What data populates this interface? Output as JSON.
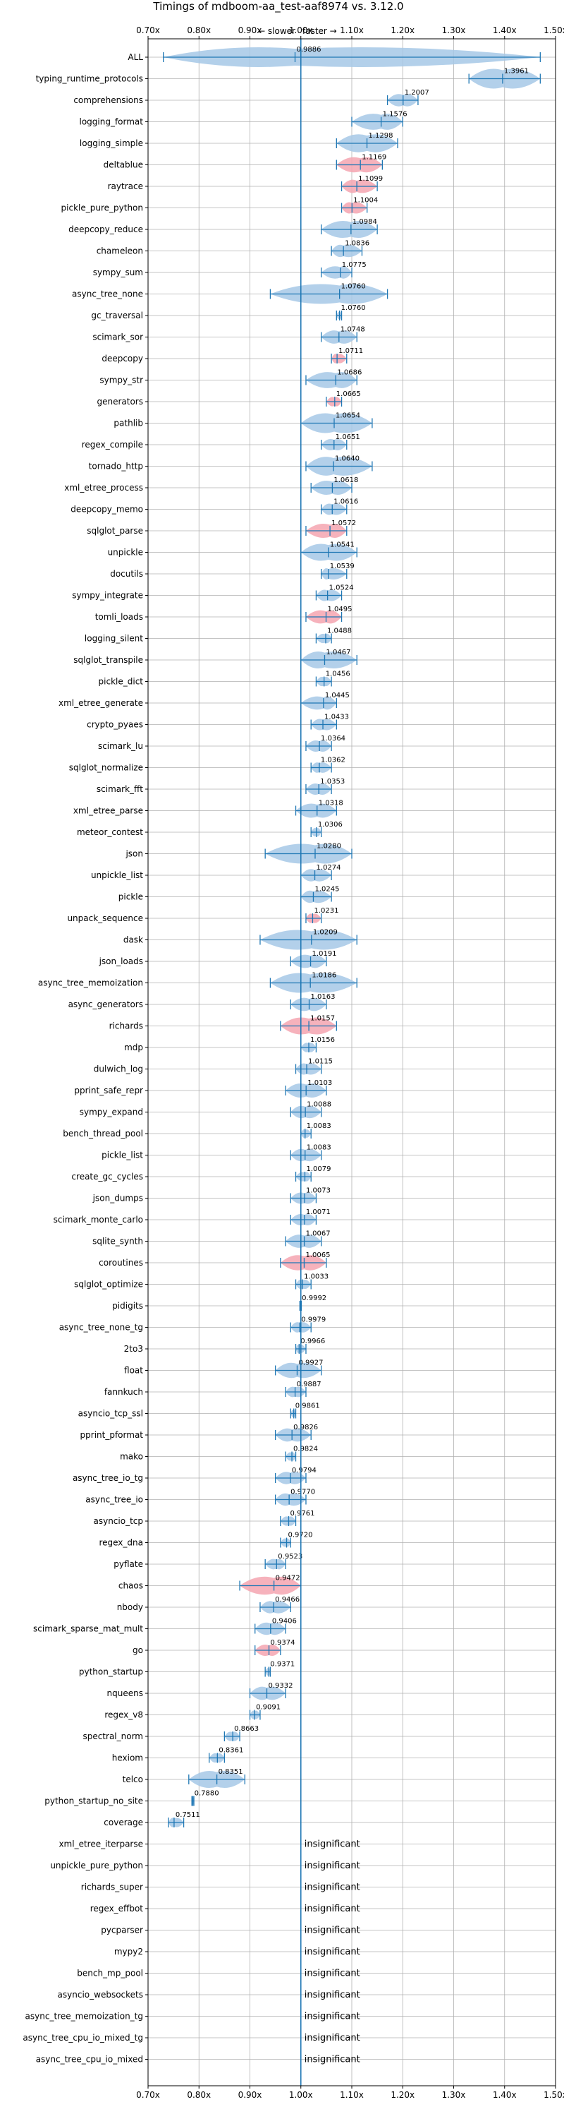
{
  "chart_data": {
    "type": "violin",
    "title": "Timings of mdboom-aa_test-aaf8974 vs. 3.12.0",
    "direction_labels": {
      "slower": "← slower",
      "faster": "faster →"
    },
    "xlim": [
      0.7,
      1.5
    ],
    "x_ticks": [
      0.7,
      0.8,
      0.9,
      1.0,
      1.1,
      1.2,
      1.3,
      1.4,
      1.5
    ],
    "x_tick_labels": [
      "0.70x",
      "0.80x",
      "0.90x",
      "1.00x",
      "1.10x",
      "1.20x",
      "1.30x",
      "1.40x",
      "1.50x"
    ],
    "reference_line": 1.0,
    "grid": true,
    "colors": {
      "normal": "#a6c8e6",
      "highlight": "#f4a5b0",
      "line": "#1f77b4"
    },
    "insignificant_text": "insignificant",
    "benchmarks": [
      {
        "name": "ALL",
        "value": 0.9886,
        "label": "0.9886",
        "min": 0.73,
        "max": 1.47,
        "status": "normal"
      },
      {
        "name": "typing_runtime_protocols",
        "value": 1.3961,
        "label": "1.3961",
        "min": 1.33,
        "max": 1.47,
        "status": "normal"
      },
      {
        "name": "comprehensions",
        "value": 1.2007,
        "label": "1.2007",
        "min": 1.17,
        "max": 1.23,
        "status": "normal"
      },
      {
        "name": "logging_format",
        "value": 1.1576,
        "label": "1.1576",
        "min": 1.1,
        "max": 1.2,
        "status": "normal"
      },
      {
        "name": "logging_simple",
        "value": 1.1298,
        "label": "1.1298",
        "min": 1.07,
        "max": 1.19,
        "status": "normal"
      },
      {
        "name": "deltablue",
        "value": 1.1169,
        "label": "1.1169",
        "min": 1.07,
        "max": 1.16,
        "status": "highlight"
      },
      {
        "name": "raytrace",
        "value": 1.1099,
        "label": "1.1099",
        "min": 1.08,
        "max": 1.15,
        "status": "highlight"
      },
      {
        "name": "pickle_pure_python",
        "value": 1.1004,
        "label": "1.1004",
        "min": 1.08,
        "max": 1.13,
        "status": "highlight"
      },
      {
        "name": "deepcopy_reduce",
        "value": 1.0984,
        "label": "1.0984",
        "min": 1.04,
        "max": 1.15,
        "status": "normal"
      },
      {
        "name": "chameleon",
        "value": 1.0836,
        "label": "1.0836",
        "min": 1.06,
        "max": 1.12,
        "status": "normal"
      },
      {
        "name": "sympy_sum",
        "value": 1.0775,
        "label": "1.0775",
        "min": 1.04,
        "max": 1.1,
        "status": "normal"
      },
      {
        "name": "async_tree_none",
        "value": 1.076,
        "label": "1.0760",
        "min": 0.94,
        "max": 1.17,
        "status": "normal"
      },
      {
        "name": "gc_traversal",
        "value": 1.076,
        "label": "1.0760",
        "min": 1.07,
        "max": 1.08,
        "status": "normal"
      },
      {
        "name": "scimark_sor",
        "value": 1.0748,
        "label": "1.0748",
        "min": 1.04,
        "max": 1.11,
        "status": "normal"
      },
      {
        "name": "deepcopy",
        "value": 1.0711,
        "label": "1.0711",
        "min": 1.06,
        "max": 1.09,
        "status": "highlight"
      },
      {
        "name": "sympy_str",
        "value": 1.0686,
        "label": "1.0686",
        "min": 1.01,
        "max": 1.11,
        "status": "normal"
      },
      {
        "name": "generators",
        "value": 1.0665,
        "label": "1.0665",
        "min": 1.05,
        "max": 1.08,
        "status": "highlight"
      },
      {
        "name": "pathlib",
        "value": 1.0654,
        "label": "1.0654",
        "min": 1.0,
        "max": 1.14,
        "status": "normal"
      },
      {
        "name": "regex_compile",
        "value": 1.0651,
        "label": "1.0651",
        "min": 1.04,
        "max": 1.09,
        "status": "normal"
      },
      {
        "name": "tornado_http",
        "value": 1.064,
        "label": "1.0640",
        "min": 1.01,
        "max": 1.14,
        "status": "normal"
      },
      {
        "name": "xml_etree_process",
        "value": 1.0618,
        "label": "1.0618",
        "min": 1.02,
        "max": 1.1,
        "status": "normal"
      },
      {
        "name": "deepcopy_memo",
        "value": 1.0616,
        "label": "1.0616",
        "min": 1.04,
        "max": 1.09,
        "status": "normal"
      },
      {
        "name": "sqlglot_parse",
        "value": 1.0572,
        "label": "1.0572",
        "min": 1.01,
        "max": 1.09,
        "status": "highlight"
      },
      {
        "name": "unpickle",
        "value": 1.0541,
        "label": "1.0541",
        "min": 1.0,
        "max": 1.11,
        "status": "normal"
      },
      {
        "name": "docutils",
        "value": 1.0539,
        "label": "1.0539",
        "min": 1.04,
        "max": 1.09,
        "status": "normal"
      },
      {
        "name": "sympy_integrate",
        "value": 1.0524,
        "label": "1.0524",
        "min": 1.03,
        "max": 1.08,
        "status": "normal"
      },
      {
        "name": "tomli_loads",
        "value": 1.0495,
        "label": "1.0495",
        "min": 1.01,
        "max": 1.08,
        "status": "highlight"
      },
      {
        "name": "logging_silent",
        "value": 1.0488,
        "label": "1.0488",
        "min": 1.03,
        "max": 1.06,
        "status": "normal"
      },
      {
        "name": "sqlglot_transpile",
        "value": 1.0467,
        "label": "1.0467",
        "min": 1.0,
        "max": 1.11,
        "status": "normal"
      },
      {
        "name": "pickle_dict",
        "value": 1.0456,
        "label": "1.0456",
        "min": 1.03,
        "max": 1.06,
        "status": "normal"
      },
      {
        "name": "xml_etree_generate",
        "value": 1.0445,
        "label": "1.0445",
        "min": 1.0,
        "max": 1.07,
        "status": "normal"
      },
      {
        "name": "crypto_pyaes",
        "value": 1.0433,
        "label": "1.0433",
        "min": 1.02,
        "max": 1.07,
        "status": "normal"
      },
      {
        "name": "scimark_lu",
        "value": 1.0364,
        "label": "1.0364",
        "min": 1.01,
        "max": 1.06,
        "status": "normal"
      },
      {
        "name": "sqlglot_normalize",
        "value": 1.0362,
        "label": "1.0362",
        "min": 1.02,
        "max": 1.06,
        "status": "normal"
      },
      {
        "name": "scimark_fft",
        "value": 1.0353,
        "label": "1.0353",
        "min": 1.01,
        "max": 1.06,
        "status": "normal"
      },
      {
        "name": "xml_etree_parse",
        "value": 1.0318,
        "label": "1.0318",
        "min": 0.99,
        "max": 1.07,
        "status": "normal"
      },
      {
        "name": "meteor_contest",
        "value": 1.0306,
        "label": "1.0306",
        "min": 1.02,
        "max": 1.04,
        "status": "normal"
      },
      {
        "name": "json",
        "value": 1.028,
        "label": "1.0280",
        "min": 0.93,
        "max": 1.1,
        "status": "normal"
      },
      {
        "name": "unpickle_list",
        "value": 1.0274,
        "label": "1.0274",
        "min": 1.0,
        "max": 1.06,
        "status": "normal"
      },
      {
        "name": "pickle",
        "value": 1.0245,
        "label": "1.0245",
        "min": 1.0,
        "max": 1.06,
        "status": "normal"
      },
      {
        "name": "unpack_sequence",
        "value": 1.0231,
        "label": "1.0231",
        "min": 1.01,
        "max": 1.04,
        "status": "highlight"
      },
      {
        "name": "dask",
        "value": 1.0209,
        "label": "1.0209",
        "min": 0.92,
        "max": 1.11,
        "status": "normal"
      },
      {
        "name": "json_loads",
        "value": 1.0191,
        "label": "1.0191",
        "min": 0.98,
        "max": 1.05,
        "status": "normal"
      },
      {
        "name": "async_tree_memoization",
        "value": 1.0186,
        "label": "1.0186",
        "min": 0.94,
        "max": 1.11,
        "status": "normal"
      },
      {
        "name": "async_generators",
        "value": 1.0163,
        "label": "1.0163",
        "min": 0.98,
        "max": 1.05,
        "status": "normal"
      },
      {
        "name": "richards",
        "value": 1.0157,
        "label": "1.0157",
        "min": 0.96,
        "max": 1.07,
        "status": "highlight"
      },
      {
        "name": "mdp",
        "value": 1.0156,
        "label": "1.0156",
        "min": 1.0,
        "max": 1.03,
        "status": "normal"
      },
      {
        "name": "dulwich_log",
        "value": 1.0115,
        "label": "1.0115",
        "min": 0.99,
        "max": 1.04,
        "status": "normal"
      },
      {
        "name": "pprint_safe_repr",
        "value": 1.0103,
        "label": "1.0103",
        "min": 0.97,
        "max": 1.05,
        "status": "normal"
      },
      {
        "name": "sympy_expand",
        "value": 1.0088,
        "label": "1.0088",
        "min": 0.98,
        "max": 1.04,
        "status": "normal"
      },
      {
        "name": "bench_thread_pool",
        "value": 1.0083,
        "label": "1.0083",
        "min": 1.0,
        "max": 1.02,
        "status": "normal"
      },
      {
        "name": "pickle_list",
        "value": 1.0083,
        "label": "1.0083",
        "min": 0.98,
        "max": 1.04,
        "status": "normal"
      },
      {
        "name": "create_gc_cycles",
        "value": 1.0079,
        "label": "1.0079",
        "min": 0.99,
        "max": 1.02,
        "status": "normal"
      },
      {
        "name": "json_dumps",
        "value": 1.0073,
        "label": "1.0073",
        "min": 0.98,
        "max": 1.03,
        "status": "normal"
      },
      {
        "name": "scimark_monte_carlo",
        "value": 1.0071,
        "label": "1.0071",
        "min": 0.98,
        "max": 1.03,
        "status": "normal"
      },
      {
        "name": "sqlite_synth",
        "value": 1.0067,
        "label": "1.0067",
        "min": 0.97,
        "max": 1.04,
        "status": "normal"
      },
      {
        "name": "coroutines",
        "value": 1.0065,
        "label": "1.0065",
        "min": 0.96,
        "max": 1.05,
        "status": "highlight"
      },
      {
        "name": "sqlglot_optimize",
        "value": 1.0033,
        "label": "1.0033",
        "min": 0.99,
        "max": 1.02,
        "status": "normal"
      },
      {
        "name": "pidigits",
        "value": 0.9992,
        "label": "0.9992",
        "min": 0.998,
        "max": 1.001,
        "status": "normal"
      },
      {
        "name": "async_tree_none_tg",
        "value": 0.9979,
        "label": "0.9979",
        "min": 0.98,
        "max": 1.02,
        "status": "normal"
      },
      {
        "name": "2to3",
        "value": 0.9966,
        "label": "0.9966",
        "min": 0.99,
        "max": 1.01,
        "status": "normal"
      },
      {
        "name": "float",
        "value": 0.9927,
        "label": "0.9927",
        "min": 0.95,
        "max": 1.04,
        "status": "normal"
      },
      {
        "name": "fannkuch",
        "value": 0.9887,
        "label": "0.9887",
        "min": 0.97,
        "max": 1.01,
        "status": "normal"
      },
      {
        "name": "asyncio_tcp_ssl",
        "value": 0.9861,
        "label": "0.9861",
        "min": 0.98,
        "max": 0.99,
        "status": "normal"
      },
      {
        "name": "pprint_pformat",
        "value": 0.9826,
        "label": "0.9826",
        "min": 0.95,
        "max": 1.02,
        "status": "normal"
      },
      {
        "name": "mako",
        "value": 0.9824,
        "label": "0.9824",
        "min": 0.97,
        "max": 0.99,
        "status": "normal"
      },
      {
        "name": "async_tree_io_tg",
        "value": 0.9794,
        "label": "0.9794",
        "min": 0.95,
        "max": 1.01,
        "status": "normal"
      },
      {
        "name": "async_tree_io",
        "value": 0.977,
        "label": "0.9770",
        "min": 0.95,
        "max": 1.01,
        "status": "normal"
      },
      {
        "name": "asyncio_tcp",
        "value": 0.9761,
        "label": "0.9761",
        "min": 0.96,
        "max": 0.99,
        "status": "normal"
      },
      {
        "name": "regex_dna",
        "value": 0.972,
        "label": "0.9720",
        "min": 0.96,
        "max": 0.98,
        "status": "normal"
      },
      {
        "name": "pyflate",
        "value": 0.9523,
        "label": "0.9523",
        "min": 0.93,
        "max": 0.97,
        "status": "normal"
      },
      {
        "name": "chaos",
        "value": 0.9472,
        "label": "0.9472",
        "min": 0.88,
        "max": 1.0,
        "status": "highlight"
      },
      {
        "name": "nbody",
        "value": 0.9466,
        "label": "0.9466",
        "min": 0.92,
        "max": 0.98,
        "status": "normal"
      },
      {
        "name": "scimark_sparse_mat_mult",
        "value": 0.9406,
        "label": "0.9406",
        "min": 0.91,
        "max": 0.97,
        "status": "normal"
      },
      {
        "name": "go",
        "value": 0.9374,
        "label": "0.9374",
        "min": 0.91,
        "max": 0.96,
        "status": "highlight"
      },
      {
        "name": "python_startup",
        "value": 0.9371,
        "label": "0.9371",
        "min": 0.93,
        "max": 0.94,
        "status": "normal"
      },
      {
        "name": "nqueens",
        "value": 0.9332,
        "label": "0.9332",
        "min": 0.9,
        "max": 0.97,
        "status": "normal"
      },
      {
        "name": "regex_v8",
        "value": 0.9091,
        "label": "0.9091",
        "min": 0.9,
        "max": 0.92,
        "status": "normal"
      },
      {
        "name": "spectral_norm",
        "value": 0.8663,
        "label": "0.8663",
        "min": 0.85,
        "max": 0.88,
        "status": "normal"
      },
      {
        "name": "hexiom",
        "value": 0.8361,
        "label": "0.8361",
        "min": 0.82,
        "max": 0.85,
        "status": "normal"
      },
      {
        "name": "telco",
        "value": 0.8351,
        "label": "0.8351",
        "min": 0.78,
        "max": 0.89,
        "status": "normal"
      },
      {
        "name": "python_startup_no_site",
        "value": 0.788,
        "label": "0.7880",
        "min": 0.786,
        "max": 0.79,
        "status": "normal"
      },
      {
        "name": "coverage",
        "value": 0.7511,
        "label": "0.7511",
        "min": 0.74,
        "max": 0.77,
        "status": "normal"
      },
      {
        "name": "xml_etree_iterparse",
        "status": "insignificant"
      },
      {
        "name": "unpickle_pure_python",
        "status": "insignificant"
      },
      {
        "name": "richards_super",
        "status": "insignificant"
      },
      {
        "name": "regex_effbot",
        "status": "insignificant"
      },
      {
        "name": "pycparser",
        "status": "insignificant"
      },
      {
        "name": "mypy2",
        "status": "insignificant"
      },
      {
        "name": "bench_mp_pool",
        "status": "insignificant"
      },
      {
        "name": "asyncio_websockets",
        "status": "insignificant"
      },
      {
        "name": "async_tree_memoization_tg",
        "status": "insignificant"
      },
      {
        "name": "async_tree_cpu_io_mixed_tg",
        "status": "insignificant"
      },
      {
        "name": "async_tree_cpu_io_mixed",
        "status": "insignificant"
      }
    ]
  }
}
